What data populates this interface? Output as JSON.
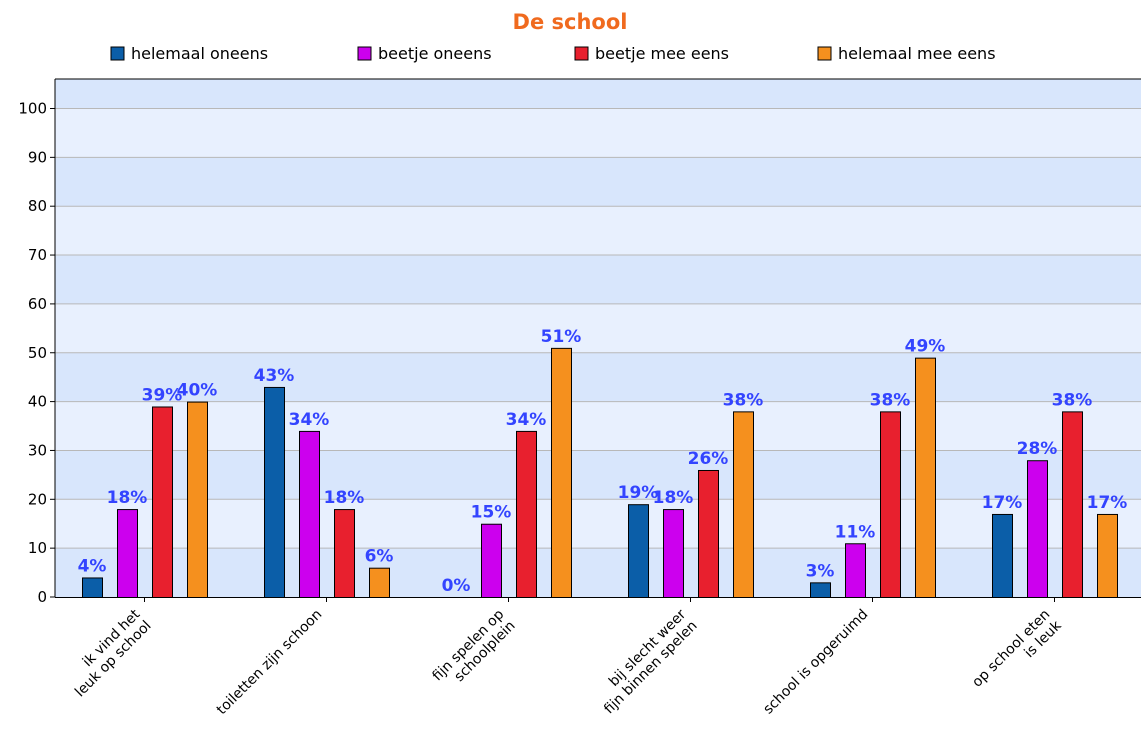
{
  "chart_data": {
    "type": "bar",
    "title": "De school",
    "xlabel": "",
    "ylabel": "",
    "ylim": [
      0,
      100
    ],
    "yticks": [
      0,
      10,
      20,
      30,
      40,
      50,
      60,
      70,
      80,
      90,
      100
    ],
    "grid": true,
    "legend_position": "top",
    "categories": [
      [
        "ik vind het",
        "leuk op school"
      ],
      [
        "toiletten zijn schoon"
      ],
      [
        "fijn spelen op",
        "schoolplein"
      ],
      [
        "bij slecht weer",
        "fijn binnen spelen"
      ],
      [
        "school is opgeruimd"
      ],
      [
        "op school eten",
        "is leuk"
      ]
    ],
    "series": [
      {
        "name": "helemaal oneens",
        "color": "#0b5ea8",
        "values": [
          4,
          43,
          0,
          19,
          3,
          17
        ]
      },
      {
        "name": "beetje oneens",
        "color": "#cc00ee",
        "values": [
          18,
          34,
          15,
          18,
          11,
          28
        ]
      },
      {
        "name": "beetje mee eens",
        "color": "#e8202e",
        "values": [
          39,
          18,
          34,
          26,
          38,
          38
        ]
      },
      {
        "name": "helemaal mee eens",
        "color": "#f5901e",
        "values": [
          40,
          6,
          51,
          38,
          49,
          17
        ]
      }
    ],
    "value_labels": [
      [
        "4%",
        "43%",
        "0%",
        "19%",
        "3%",
        "17%"
      ],
      [
        "18%",
        "34%",
        "15%",
        "18%",
        "11%",
        "28%"
      ],
      [
        "39%",
        "18%",
        "34%",
        "26%",
        "38%",
        "38%"
      ],
      [
        "40%",
        "6%",
        "51%",
        "38%",
        "49%",
        "17%"
      ]
    ],
    "colors": {
      "title": "#f06a1e",
      "value_label": "#3344ff",
      "plot_band_dark": "#d8e6fc",
      "plot_band_light": "#e8f0fe",
      "grid": "#b8b8b8"
    }
  }
}
